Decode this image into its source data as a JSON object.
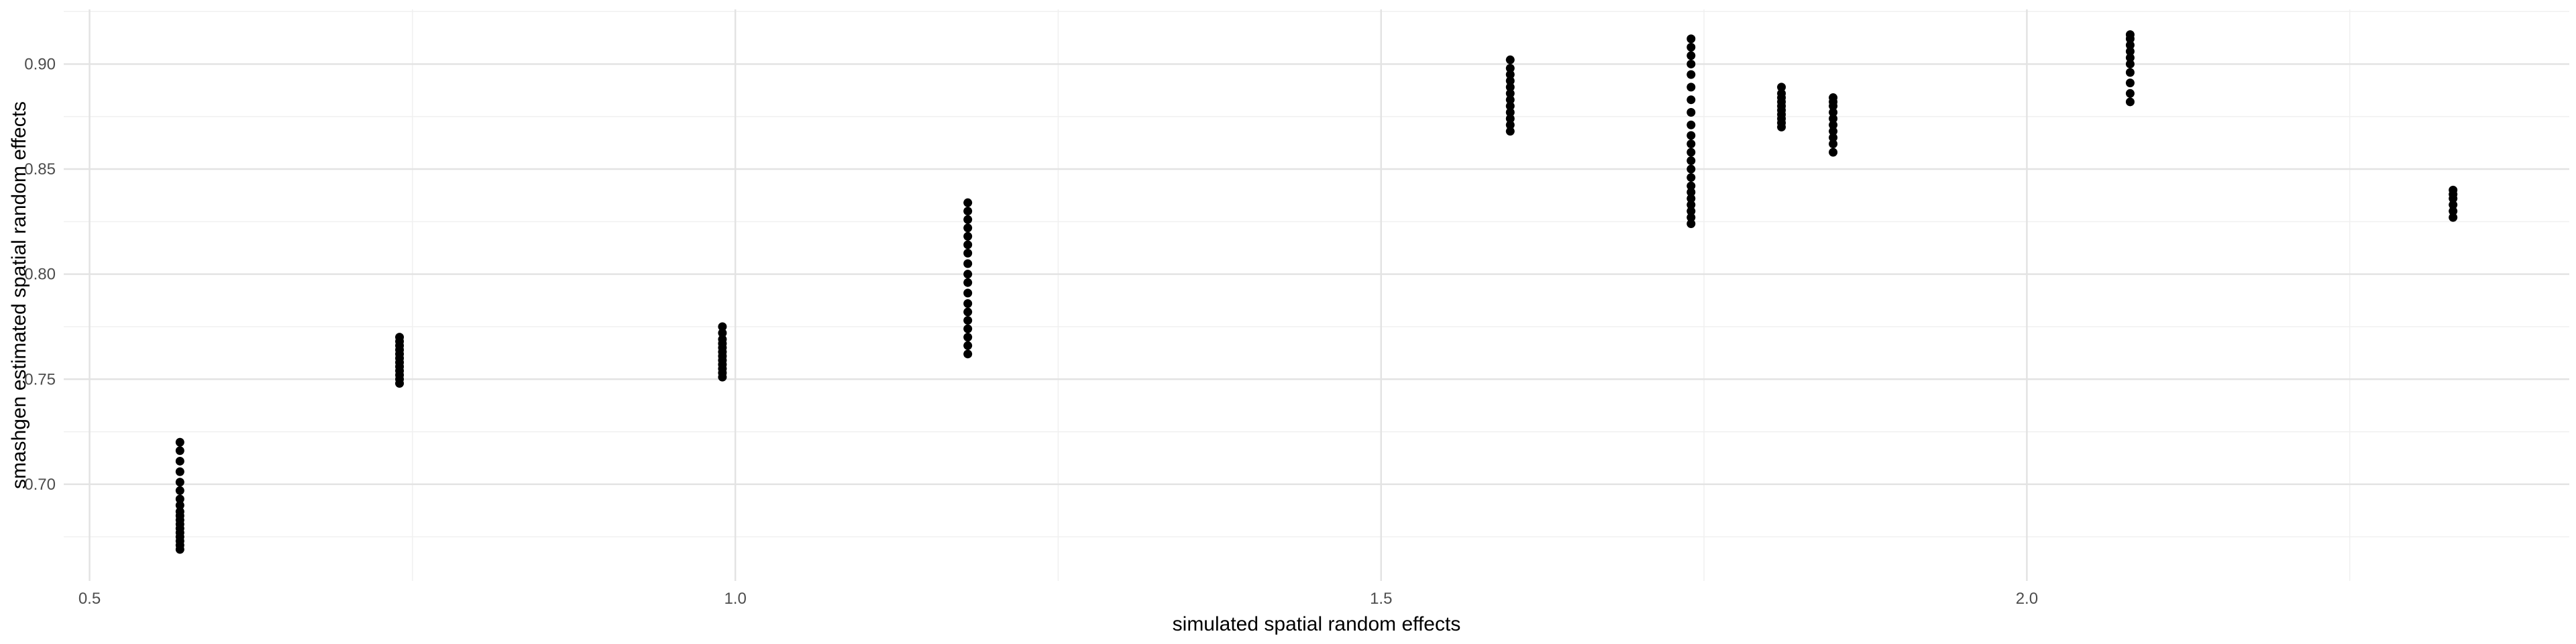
{
  "chart_data": {
    "type": "scatter",
    "title": "",
    "xlabel": "simulated spatial random effects",
    "ylabel": "smashgen estimated spatial random effects",
    "xlim": [
      0.48,
      2.42
    ],
    "ylim": [
      0.654,
      0.926
    ],
    "x_ticks": [
      0.5,
      1.0,
      1.5,
      2.0
    ],
    "x_tick_labels": [
      "0.5",
      "1.0",
      "1.5",
      "2.0"
    ],
    "y_ticks": [
      0.7,
      0.75,
      0.8,
      0.85,
      0.9
    ],
    "y_tick_labels": [
      "0.70",
      "0.75",
      "0.80",
      "0.85",
      "0.90"
    ],
    "grid": true,
    "legend": "none",
    "point_color": "#000000",
    "groups": [
      {
        "x": 0.57,
        "y": [
          0.669,
          0.671,
          0.673,
          0.675,
          0.677,
          0.679,
          0.681,
          0.683,
          0.685,
          0.687,
          0.69,
          0.693,
          0.697,
          0.701,
          0.706,
          0.711,
          0.716,
          0.72
        ]
      },
      {
        "x": 0.74,
        "y": [
          0.748,
          0.75,
          0.752,
          0.754,
          0.756,
          0.758,
          0.76,
          0.762,
          0.764,
          0.766,
          0.768,
          0.77
        ]
      },
      {
        "x": 0.99,
        "y": [
          0.751,
          0.753,
          0.755,
          0.757,
          0.759,
          0.761,
          0.763,
          0.765,
          0.767,
          0.769,
          0.772,
          0.775
        ]
      },
      {
        "x": 1.18,
        "y": [
          0.762,
          0.766,
          0.77,
          0.774,
          0.778,
          0.782,
          0.786,
          0.791,
          0.796,
          0.8,
          0.805,
          0.81,
          0.814,
          0.818,
          0.822,
          0.826,
          0.83,
          0.834
        ]
      },
      {
        "x": 1.6,
        "y": [
          0.868,
          0.871,
          0.874,
          0.877,
          0.88,
          0.883,
          0.886,
          0.889,
          0.892,
          0.895,
          0.898,
          0.902
        ]
      },
      {
        "x": 1.74,
        "y": [
          0.824,
          0.827,
          0.83,
          0.833,
          0.836,
          0.839,
          0.842,
          0.846,
          0.85,
          0.854,
          0.858,
          0.862,
          0.866,
          0.871,
          0.877,
          0.883,
          0.889,
          0.895,
          0.9,
          0.904,
          0.908,
          0.912
        ]
      },
      {
        "x": 1.81,
        "y": [
          0.87,
          0.872,
          0.874,
          0.876,
          0.878,
          0.88,
          0.882,
          0.884,
          0.886,
          0.889
        ]
      },
      {
        "x": 1.85,
        "y": [
          0.858,
          0.862,
          0.865,
          0.868,
          0.871,
          0.874,
          0.877,
          0.88,
          0.882,
          0.884
        ]
      },
      {
        "x": 2.08,
        "y": [
          0.882,
          0.886,
          0.891,
          0.896,
          0.9,
          0.903,
          0.906,
          0.909,
          0.912,
          0.914
        ]
      },
      {
        "x": 2.33,
        "y": [
          0.827,
          0.83,
          0.833,
          0.836,
          0.838,
          0.84
        ]
      }
    ]
  }
}
